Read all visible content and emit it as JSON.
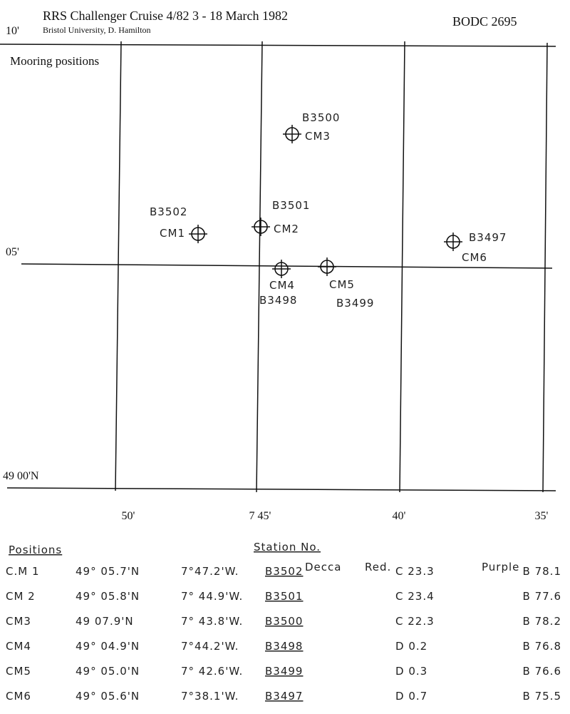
{
  "header": {
    "title": "RRS Challenger  Cruise 4/82  3 - 18 March 1982",
    "subtitle": "Bristol University, D. Hamilton",
    "reference": "BODC 2695"
  },
  "map": {
    "label": "Mooring positions",
    "lat_labels": [
      "10'",
      "05'",
      "49 00'N"
    ],
    "lon_labels": [
      "50'",
      "7 45'",
      "40'",
      "35'"
    ],
    "moorings": [
      {
        "name": "CM1",
        "station": "B3502"
      },
      {
        "name": "CM2",
        "station": "B3501"
      },
      {
        "name": "CM3",
        "station": "B3500"
      },
      {
        "name": "CM4",
        "station": "B3498"
      },
      {
        "name": "CM5",
        "station": "B3499"
      },
      {
        "name": "CM6",
        "station": "B3497"
      }
    ]
  },
  "table": {
    "title": "Positions",
    "station_header": "Station No.",
    "decca": "Decca",
    "red": "Red.",
    "purple": "Purple",
    "rows": [
      [
        "C.M 1",
        "49° 05.7'N",
        "7°47.2'W.",
        "B3502",
        "C 23.3",
        "B 78.1"
      ],
      [
        "CM 2",
        "49° 05.8'N",
        "7° 44.9'W.",
        "B3501",
        "C 23.4",
        "B 77.6"
      ],
      [
        "CM3",
        "49 07.9'N",
        "7° 43.8'W.",
        "B3500",
        "C 22.3",
        "B 78.2"
      ],
      [
        "CM4",
        "49° 04.9'N",
        "7°44.2'W.",
        "B3498",
        "D 0.2",
        "B 76.8"
      ],
      [
        "CM5",
        "49° 05.0'N",
        "7° 42.6'W.",
        "B3499",
        "D 0.3",
        "B 76.6"
      ],
      [
        "CM6",
        "49° 05.6'N",
        "7°38.1'W.",
        "B3497",
        "D 0.7",
        "B 75.5"
      ]
    ]
  }
}
